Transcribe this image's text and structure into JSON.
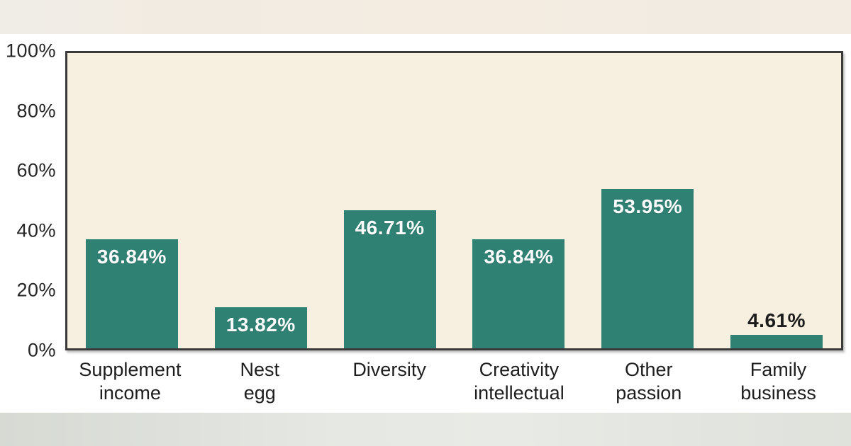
{
  "chart_data": {
    "type": "bar",
    "categories": [
      "Supplement income",
      "Nest egg",
      "Diversity",
      "Creativity intellectual",
      "Other passion",
      "Family business"
    ],
    "category_label_lines": [
      [
        "Supplement",
        "income"
      ],
      [
        "Nest",
        "egg"
      ],
      [
        "Diversity"
      ],
      [
        "Creativity",
        "intellectual"
      ],
      [
        "Other",
        "passion"
      ],
      [
        "Family",
        "business"
      ]
    ],
    "values": [
      36.84,
      13.82,
      46.71,
      36.84,
      53.95,
      4.61
    ],
    "value_labels": [
      "36.84%",
      "13.82%",
      "46.71%",
      "36.84%",
      "53.95%",
      "4.61%"
    ],
    "title": "",
    "xlabel": "",
    "ylabel": "",
    "ylim": [
      0,
      100
    ],
    "ytick_labels": [
      "100%",
      "80%",
      "60%",
      "40%",
      "20%",
      "0%"
    ],
    "grid": false,
    "legend": false,
    "outside_label_threshold": 8
  },
  "colors": {
    "bar_fill": "#2f8173",
    "plot_background": "#f7f0e0",
    "plot_border": "#3a3a3a",
    "value_label_inside": "#fcfcfc",
    "value_label_outside": "#1c1c1c",
    "axis_text": "#262626",
    "page_background": "#ffffff",
    "top_band": "#f3ece2",
    "bottom_band": "#dfe2db"
  }
}
